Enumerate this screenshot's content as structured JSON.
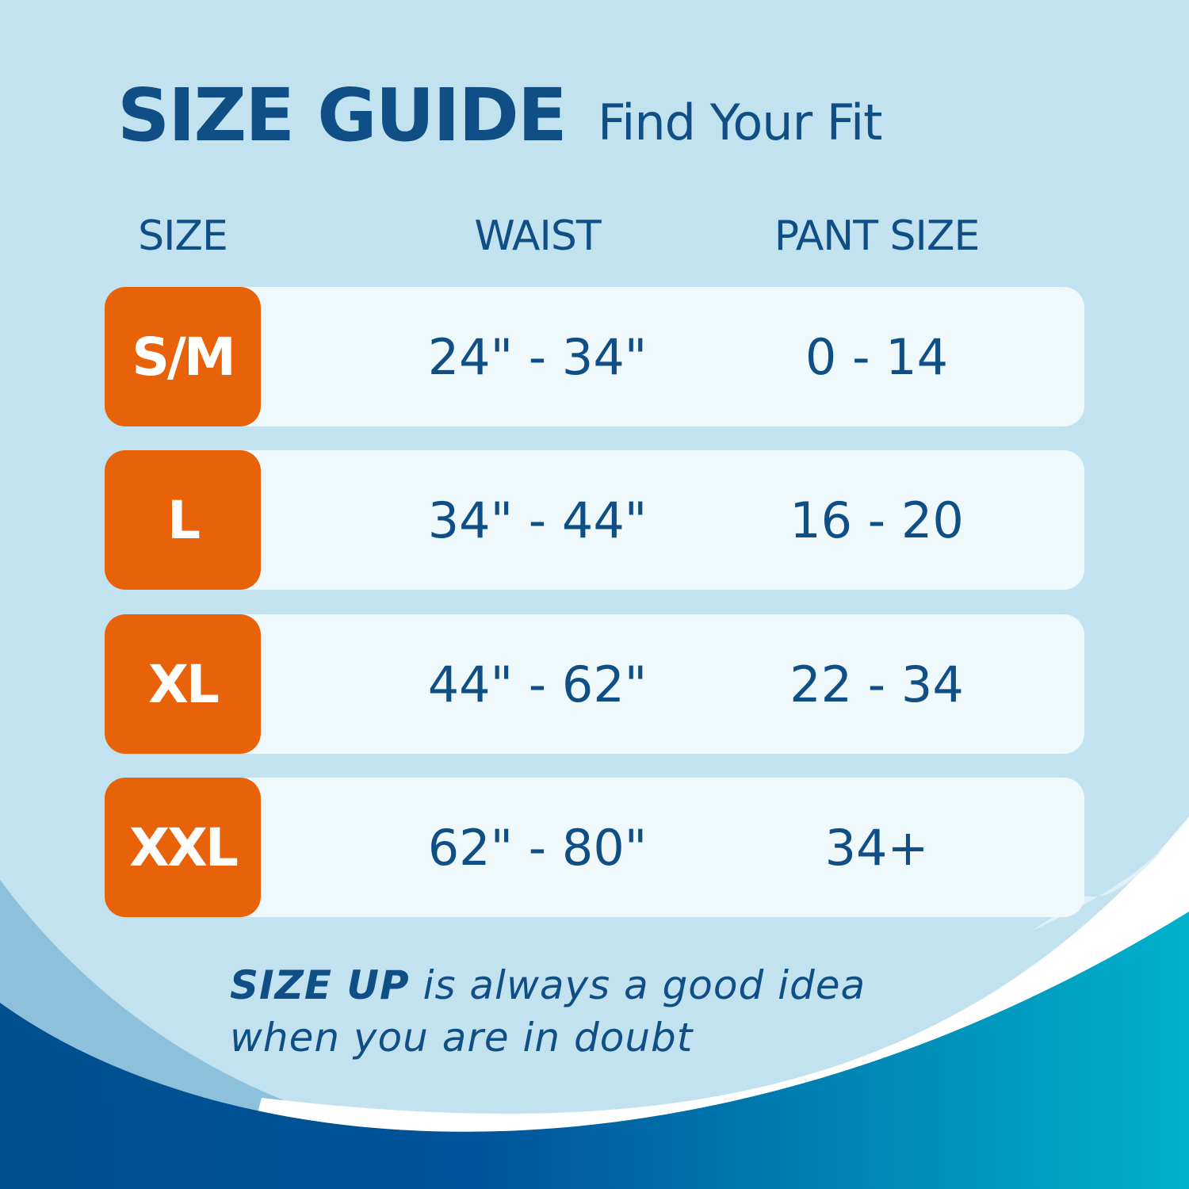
{
  "header": {
    "title": "SIZE GUIDE",
    "subtitle": "Find Your Fit"
  },
  "columns": [
    "SIZE",
    "WAIST",
    "PANT SIZE"
  ],
  "rows": [
    {
      "size": "S/M",
      "waist": "24\" - 34\"",
      "pant": "0 - 14"
    },
    {
      "size": "L",
      "waist": "34\" - 44\"",
      "pant": "16 - 20"
    },
    {
      "size": "XL",
      "waist": "44\" - 62\"",
      "pant": "22 - 34"
    },
    {
      "size": "XXL",
      "waist": "62\" - 80\"",
      "pant": "34+"
    }
  ],
  "note": {
    "emphasis": "SIZE UP",
    "line1": " is always a good idea",
    "line2": "when you are in doubt"
  },
  "colors": {
    "accent": "#e8620a",
    "text": "#0f4f86",
    "background": "#c2e2ef",
    "row": "#eff8fb",
    "wave_dark": "#00508f",
    "wave_teal": "#00b2cc"
  }
}
